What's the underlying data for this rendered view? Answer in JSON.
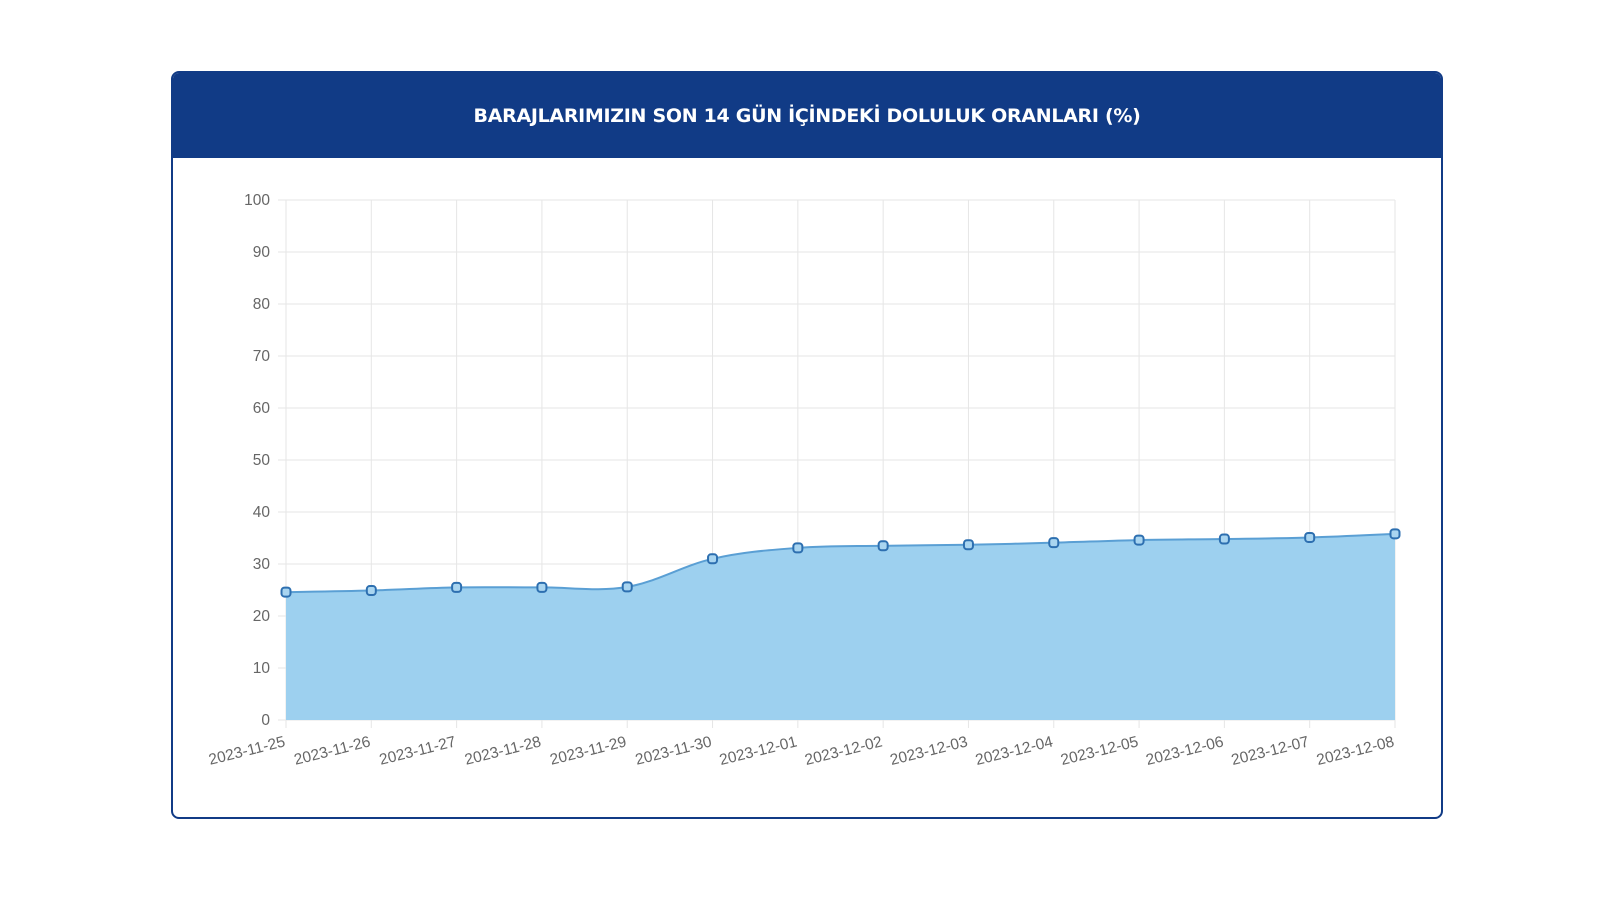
{
  "header": {
    "title": "BARAJLARIMIZIN SON 14 GÜN İÇİNDEKİ DOLULUK ORANLARI (%)"
  },
  "colors": {
    "header_bg": "#113b86",
    "area_fill": "#9dd0ef",
    "line": "#5a9fd4",
    "point_stroke": "#2d6fb0",
    "grid": "#e6e6e6"
  },
  "chart_data": {
    "type": "area",
    "title": "BARAJLARIMIZIN SON 14 GÜN İÇİNDEKİ DOLULUK ORANLARI (%)",
    "xlabel": "",
    "ylabel": "",
    "ylim": [
      0,
      100
    ],
    "yticks": [
      "0",
      "10",
      "20",
      "30",
      "40",
      "50",
      "60",
      "70",
      "80",
      "90",
      "100"
    ],
    "categories": [
      "2023-11-25",
      "2023-11-26",
      "2023-11-27",
      "2023-11-28",
      "2023-11-29",
      "2023-11-30",
      "2023-12-01",
      "2023-12-02",
      "2023-12-03",
      "2023-12-04",
      "2023-12-05",
      "2023-12-06",
      "2023-12-07",
      "2023-12-08"
    ],
    "values": [
      24.6,
      24.9,
      25.5,
      25.5,
      25.6,
      31.0,
      33.1,
      33.5,
      33.7,
      34.1,
      34.6,
      34.8,
      35.1,
      35.8
    ],
    "grid": true,
    "legend": "none"
  }
}
